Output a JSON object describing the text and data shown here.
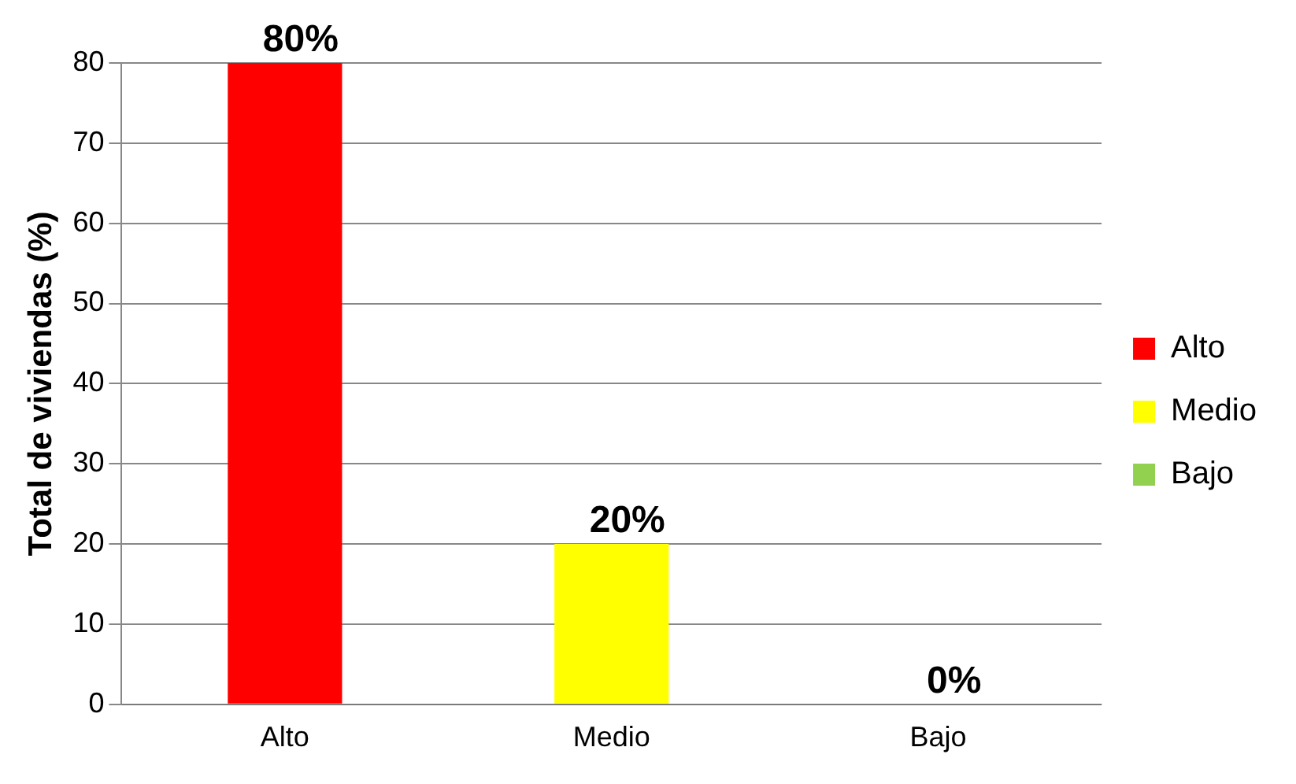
{
  "chart_data": {
    "type": "bar",
    "ylabel": "Total de viviendas (%)",
    "categories": [
      "Alto",
      "Medio",
      "Bajo"
    ],
    "series": [
      {
        "name": "Alto",
        "color": "#ff0000",
        "values": [
          80,
          null,
          null
        ],
        "value_labels": [
          "80%",
          null,
          null
        ]
      },
      {
        "name": "Medio",
        "color": "#ffff00",
        "values": [
          null,
          20,
          null
        ],
        "value_labels": [
          null,
          "20%",
          null
        ]
      },
      {
        "name": "Bajo",
        "color": "#92d050",
        "values": [
          null,
          null,
          0
        ],
        "value_labels": [
          null,
          null,
          "0%"
        ]
      }
    ],
    "ylim": [
      0,
      80
    ],
    "yticks": [
      0,
      10,
      20,
      30,
      40,
      50,
      60,
      70,
      80
    ],
    "grid": "y",
    "legend": "right"
  }
}
